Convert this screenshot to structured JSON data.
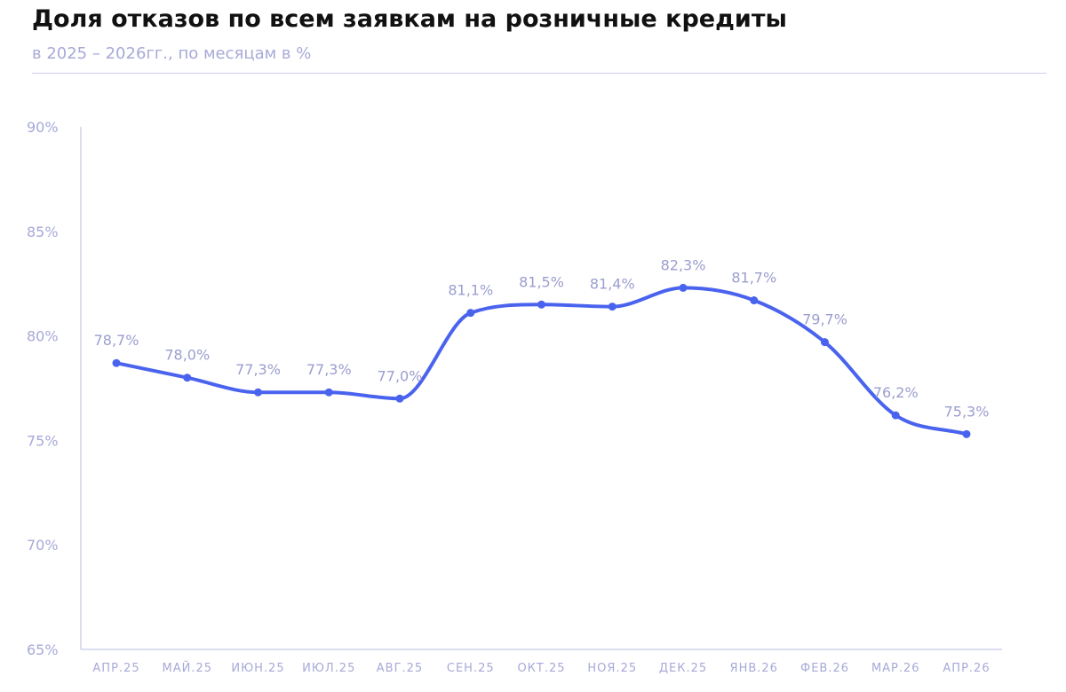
{
  "header": {
    "title": "Доля отказов по всем заявкам на розничные кредиты",
    "subtitle": "в 2025 – 2026гг., по месяцам в %"
  },
  "colors": {
    "line": "#4a63ee",
    "axis": "#b9bbe2",
    "tick_text": "#a7a9d8",
    "label_text": "#9b9ecf"
  },
  "chart_data": {
    "type": "line",
    "title": "Доля отказов по всем заявкам на розничные кредиты",
    "subtitle": "в 2025 – 2026гг., по месяцам в %",
    "xlabel": "",
    "ylabel": "",
    "ylim": [
      65,
      90
    ],
    "yticks": [
      65,
      70,
      75,
      80,
      85,
      90
    ],
    "ytick_labels": [
      "65%",
      "70%",
      "75%",
      "80%",
      "85%",
      "90%"
    ],
    "grid": false,
    "categories": [
      "АПР.25",
      "МАЙ.25",
      "ИЮН.25",
      "ИЮЛ.25",
      "АВГ.25",
      "СЕН.25",
      "ОКТ.25",
      "НОЯ.25",
      "ДЕК.25",
      "ЯНВ.26",
      "ФЕВ.26",
      "МАР.26",
      "АПР.26"
    ],
    "series": [
      {
        "values": [
          78.7,
          78.0,
          77.3,
          77.3,
          77.0,
          81.1,
          81.5,
          81.4,
          82.3,
          81.7,
          79.7,
          76.2,
          75.3
        ],
        "labels": [
          "78,7%",
          "78,0%",
          "77,3%",
          "77,3%",
          "77,0%",
          "81,1%",
          "81,5%",
          "81,4%",
          "82,3%",
          "81,7%",
          "79,7%",
          "76,2%",
          "75,3%"
        ]
      }
    ]
  }
}
